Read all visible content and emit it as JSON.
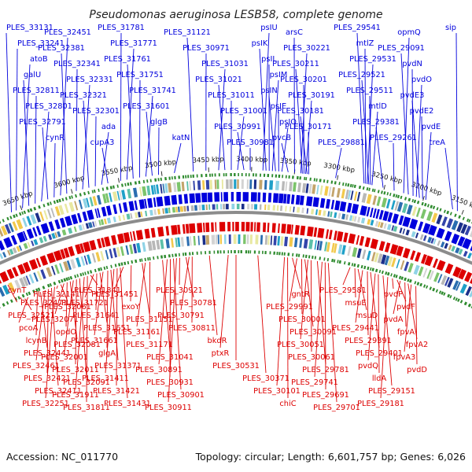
{
  "title": "Pseudomonas aeruginosa LESB58, complete genome",
  "footer": {
    "accession": "Accession: NC_011770",
    "summary": "Topology: circular; Length: 6,601,757 bp; Genes: 6,026"
  },
  "colors": {
    "forward": "#0000dd",
    "reverse": "#dd0000",
    "backbone": "#8c8c8c",
    "tick_marks": "#2e8b2e"
  },
  "ticks": [
    "3650 kbp",
    "3600 kbp",
    "3550 kbp",
    "3500 kbp",
    "3450 kbp",
    "3400 kbp",
    "3350 kbp",
    "3300 kbp",
    "3250 kbp",
    "3200 kbp",
    "3150 kbp"
  ],
  "forward_labels": [
    {
      "text": "PLES_33131",
      "anchor": 16
    },
    {
      "text": "PLES_33241",
      "anchor": 22
    },
    {
      "text": "atoB",
      "anchor": 30
    },
    {
      "text": "galU",
      "anchor": 38
    },
    {
      "text": "PLES_32811",
      "anchor": 46
    },
    {
      "text": "PLES_32801",
      "anchor": 54
    },
    {
      "text": "PLES_32791",
      "anchor": 62
    },
    {
      "text": "cynR",
      "anchor": 70
    },
    {
      "text": "PLES_32451",
      "anchor": 78
    },
    {
      "text": "PLES_32381",
      "anchor": 86
    },
    {
      "text": "PLES_32341",
      "anchor": 98
    },
    {
      "text": "PLES_32331",
      "anchor": 106
    },
    {
      "text": "PLES_32321",
      "anchor": 114
    },
    {
      "text": "PLES_32301",
      "anchor": 122
    },
    {
      "text": "ada",
      "anchor": 130
    },
    {
      "text": "cupA3",
      "anchor": 138
    },
    {
      "text": "PLES_31781",
      "anchor": 154
    },
    {
      "text": "PLES_31771",
      "anchor": 162
    },
    {
      "text": "PLES_31761",
      "anchor": 170
    },
    {
      "text": "PLES_31751",
      "anchor": 178
    },
    {
      "text": "PLES_31741",
      "anchor": 186
    },
    {
      "text": "PLES_31601",
      "anchor": 194
    },
    {
      "text": "glgB",
      "anchor": 202
    },
    {
      "text": "katN",
      "anchor": 222
    },
    {
      "text": "PLES_31121",
      "anchor": 246
    },
    {
      "text": "PLES_30971",
      "anchor": 262
    },
    {
      "text": "PLES_31031",
      "anchor": 278
    },
    {
      "text": "PLES_31021",
      "anchor": 286
    },
    {
      "text": "PLES_31011",
      "anchor": 294
    },
    {
      "text": "PLES_31001",
      "anchor": 302
    },
    {
      "text": "PLES_30991",
      "anchor": 310
    },
    {
      "text": "PLES_30981",
      "anchor": 318
    },
    {
      "text": "psIU",
      "anchor": 334
    },
    {
      "text": "psIK",
      "anchor": 338
    },
    {
      "text": "psIL",
      "anchor": 342
    },
    {
      "text": "psIM",
      "anchor": 346
    },
    {
      "text": "psIN",
      "anchor": 350
    },
    {
      "text": "psIE",
      "anchor": 354
    },
    {
      "text": "psIO",
      "anchor": 358
    },
    {
      "text": "pvcB",
      "anchor": 366
    },
    {
      "text": "arsC",
      "anchor": 374
    },
    {
      "text": "PLES_30221",
      "anchor": 382
    },
    {
      "text": "PLES_30211",
      "anchor": 384
    },
    {
      "text": "PLES_30201",
      "anchor": 386
    },
    {
      "text": "PLES_30191",
      "anchor": 388
    },
    {
      "text": "PLES_30181",
      "anchor": 390
    },
    {
      "text": "PLES_30171",
      "anchor": 392
    },
    {
      "text": "PLES_29881",
      "anchor": 426
    },
    {
      "text": "PLES_29541",
      "anchor": 462
    },
    {
      "text": "mtlZ",
      "anchor": 464
    },
    {
      "text": "PLES_29531",
      "anchor": 466
    },
    {
      "text": "PLES_29521",
      "anchor": 468
    },
    {
      "text": "PLES_29511",
      "anchor": 470
    },
    {
      "text": "mtlD",
      "anchor": 472
    },
    {
      "text": "PLES_29381",
      "anchor": 486
    },
    {
      "text": "PLES_29261",
      "anchor": 500
    },
    {
      "text": "opmQ",
      "anchor": 512
    },
    {
      "text": "PLES_29091",
      "anchor": 518
    },
    {
      "text": "pvdN",
      "anchor": 524
    },
    {
      "text": "pvdO",
      "anchor": 528
    },
    {
      "text": "pvdE3",
      "anchor": 532
    },
    {
      "text": "pvdE2",
      "anchor": 536
    },
    {
      "text": "pvdE",
      "anchor": 540
    },
    {
      "text": "treA",
      "anchor": 574
    },
    {
      "text": "sip",
      "anchor": 580
    }
  ],
  "reverse_labels": [
    {
      "text": "cynT",
      "anchor": 20
    },
    {
      "text": "PLES_32471",
      "anchor": 26
    },
    {
      "text": "PLES_32521",
      "anchor": 30
    },
    {
      "text": "pcoA",
      "anchor": 34
    },
    {
      "text": "lcynB",
      "anchor": 46
    },
    {
      "text": "PLES_32441",
      "anchor": 50
    },
    {
      "text": "PLES_32461",
      "anchor": 56
    },
    {
      "text": "PLES_32421",
      "anchor": 60
    },
    {
      "text": "PLES_32411",
      "anchor": 64
    },
    {
      "text": "PLES_32251",
      "anchor": 68
    },
    {
      "text": "PLES_32141",
      "anchor": 72
    },
    {
      "text": "PLES_32061",
      "anchor": 76
    },
    {
      "text": "PLES_32071",
      "anchor": 80
    },
    {
      "text": "opdO",
      "anchor": 84
    },
    {
      "text": "PLES_32081",
      "anchor": 88
    },
    {
      "text": "PLES_32001",
      "anchor": 92
    },
    {
      "text": "PLES_32011",
      "anchor": 96
    },
    {
      "text": "PLES_32091",
      "anchor": 100
    },
    {
      "text": "PLES_31911",
      "anchor": 106
    },
    {
      "text": "PLES_31811",
      "anchor": 110
    },
    {
      "text": "PLES_31841",
      "anchor": 114
    },
    {
      "text": "PLES_31721",
      "anchor": 118
    },
    {
      "text": "PLES_31641",
      "anchor": 122
    },
    {
      "text": "PLES_31651",
      "anchor": 126
    },
    {
      "text": "PLES_31661",
      "anchor": 130
    },
    {
      "text": "glgA",
      "anchor": 136
    },
    {
      "text": "PLES_31371",
      "anchor": 140
    },
    {
      "text": "PLES_31411",
      "anchor": 144
    },
    {
      "text": "PLES_31421",
      "anchor": 148
    },
    {
      "text": "PLES_31431",
      "anchor": 152
    },
    {
      "text": "PLES_31451",
      "anchor": 156
    },
    {
      "text": "exoY",
      "anchor": 166
    },
    {
      "text": "PLES_31151",
      "anchor": 180
    },
    {
      "text": "PLES_31161",
      "anchor": 184
    },
    {
      "text": "PLES_31171",
      "anchor": 190
    },
    {
      "text": "PLES_31041",
      "anchor": 206
    },
    {
      "text": "PLES_30891",
      "anchor": 212
    },
    {
      "text": "PLES_30931",
      "anchor": 216
    },
    {
      "text": "PLES_30901",
      "anchor": 220
    },
    {
      "text": "PLES_30911",
      "anchor": 224
    },
    {
      "text": "PLES_30921",
      "anchor": 228
    },
    {
      "text": "PLES_30781",
      "anchor": 236
    },
    {
      "text": "PLES_30791",
      "anchor": 240
    },
    {
      "text": "PLES_30811",
      "anchor": 244
    },
    {
      "text": "bkdR",
      "anchor": 266
    },
    {
      "text": "ptxR",
      "anchor": 290
    },
    {
      "text": "PLES_30531",
      "anchor": 300
    },
    {
      "text": "PLES_30371",
      "anchor": 328
    },
    {
      "text": "PLES_30101",
      "anchor": 362
    },
    {
      "text": "chiC",
      "anchor": 366
    },
    {
      "text": "gntR",
      "anchor": 372
    },
    {
      "text": "PLES_29991",
      "anchor": 378
    },
    {
      "text": "PLES_30001",
      "anchor": 384
    },
    {
      "text": "PLES_30091",
      "anchor": 388
    },
    {
      "text": "PLES_30051",
      "anchor": 392
    },
    {
      "text": "PLES_30061",
      "anchor": 396
    },
    {
      "text": "PLES_29781",
      "anchor": 404
    },
    {
      "text": "PLES_29741",
      "anchor": 410
    },
    {
      "text": "PLES_29691",
      "anchor": 414
    },
    {
      "text": "PLES_29701",
      "anchor": 418
    },
    {
      "text": "PLES_29581",
      "anchor": 446
    },
    {
      "text": "msuE",
      "anchor": 452
    },
    {
      "text": "msuD",
      "anchor": 456
    },
    {
      "text": "PLES_29441",
      "anchor": 462
    },
    {
      "text": "PLES_29391",
      "anchor": 468
    },
    {
      "text": "PLES_29401",
      "anchor": 472
    },
    {
      "text": "pvdQ",
      "anchor": 478
    },
    {
      "text": "lldA",
      "anchor": 482
    },
    {
      "text": "PLES_29151",
      "anchor": 488
    },
    {
      "text": "PLES_29181",
      "anchor": 494
    },
    {
      "text": "pvdP",
      "anchor": 500
    },
    {
      "text": "pvdF",
      "anchor": 506
    },
    {
      "text": "pvdA",
      "anchor": 510
    },
    {
      "text": "fpvA",
      "anchor": 516
    },
    {
      "text": "fpvA2",
      "anchor": 520
    },
    {
      "text": "fpvA3",
      "anchor": 524
    },
    {
      "text": "pvdD",
      "anchor": 530
    }
  ]
}
